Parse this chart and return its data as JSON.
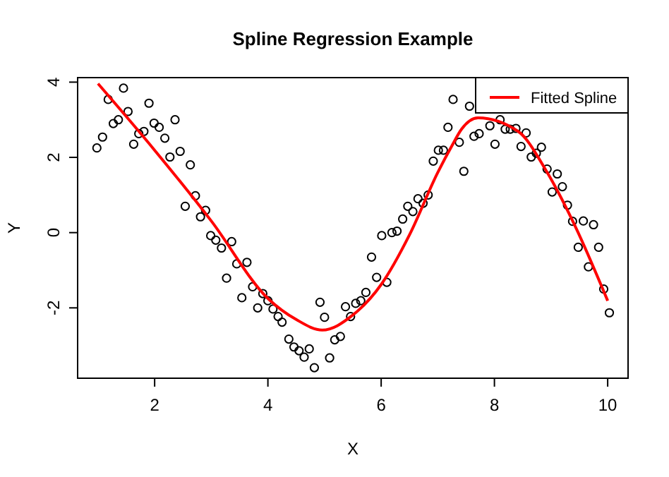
{
  "chart_data": {
    "type": "scatter",
    "title": "Spline Regression Example",
    "xlabel": "X",
    "ylabel": "Y",
    "xlim": [
      0.64,
      10.36
    ],
    "ylim": [
      -3.87,
      4.12
    ],
    "xticks": [
      2,
      4,
      6,
      8,
      10
    ],
    "yticks": [
      -2,
      0,
      2,
      4
    ],
    "grid": false,
    "legend": "top right",
    "series": [
      {
        "color": "#000000",
        "marker": "circle",
        "x": [
          0.98,
          1.08,
          1.18,
          1.27,
          1.36,
          1.45,
          1.53,
          1.63,
          1.72,
          1.81,
          1.9,
          1.99,
          2.08,
          2.18,
          2.27,
          2.36,
          2.45,
          2.54,
          2.63,
          2.72,
          2.81,
          2.9,
          2.99,
          3.08,
          3.18,
          3.27,
          3.36,
          3.45,
          3.54,
          3.63,
          3.73,
          3.82,
          3.91,
          4.0,
          4.09,
          4.18,
          4.25,
          4.37,
          4.46,
          4.55,
          4.64,
          4.73,
          4.82,
          4.92,
          5.0,
          5.09,
          5.18,
          5.28,
          5.37,
          5.46,
          5.55,
          5.64,
          5.73,
          5.83,
          5.92,
          6.01,
          6.1,
          6.19,
          6.28,
          6.38,
          6.47,
          6.56,
          6.65,
          6.74,
          6.83,
          6.92,
          7.01,
          7.1,
          7.18,
          7.27,
          7.38,
          7.46,
          7.56,
          7.64,
          7.73,
          7.92,
          8.01,
          8.1,
          8.19,
          8.28,
          8.38,
          8.47,
          8.56,
          8.65,
          8.74,
          8.83,
          8.93,
          9.02,
          9.11,
          9.2,
          9.29,
          9.38,
          9.48,
          9.57,
          9.66,
          9.75,
          9.84,
          9.93,
          10.03
        ],
        "values": [
          2.25,
          2.54,
          3.54,
          2.9,
          3.0,
          3.84,
          3.22,
          2.35,
          2.63,
          2.69,
          3.44,
          2.91,
          2.8,
          2.51,
          2.01,
          3.0,
          2.16,
          0.7,
          1.8,
          0.98,
          0.42,
          0.59,
          -0.08,
          -0.2,
          -0.41,
          -1.21,
          -0.24,
          -0.83,
          -1.73,
          -0.79,
          -1.44,
          -2.0,
          -1.62,
          -1.81,
          -2.03,
          -2.23,
          -2.38,
          -2.83,
          -3.04,
          -3.14,
          -3.31,
          -3.09,
          -3.59,
          -1.85,
          -2.25,
          -3.33,
          -2.85,
          -2.76,
          -1.97,
          -2.23,
          -1.88,
          -1.81,
          -1.59,
          -0.65,
          -1.19,
          -0.08,
          -1.32,
          0.0,
          0.04,
          0.36,
          0.7,
          0.56,
          0.9,
          0.78,
          1.0,
          1.9,
          2.19,
          2.19,
          2.8,
          3.54,
          2.4,
          1.63,
          3.36,
          2.56,
          2.63,
          2.84,
          2.35,
          3.0,
          2.75,
          2.75,
          2.77,
          2.29,
          2.65,
          2.01,
          2.11,
          2.27,
          1.69,
          1.08,
          1.56,
          1.22,
          0.73,
          0.3,
          -0.39,
          0.31,
          -0.91,
          0.21,
          -0.39,
          -1.5,
          -2.13
        ]
      },
      {
        "type": "line",
        "name": "Fitted Spline",
        "color": "#ff0000",
        "marker": "none",
        "line_style": "solid",
        "x": [
          1.0,
          2.0,
          3.0,
          4.0,
          4.5,
          4.96,
          5.5,
          6.0,
          6.5,
          7.0,
          7.25,
          7.42,
          7.71,
          8.42,
          8.92,
          9.42,
          10.0
        ],
        "values": [
          3.96,
          2.19,
          0.31,
          -1.75,
          -2.31,
          -2.59,
          -2.19,
          -1.38,
          -0.06,
          1.6,
          2.31,
          2.75,
          3.05,
          2.69,
          1.63,
          0.19,
          -1.81
        ]
      }
    ]
  }
}
